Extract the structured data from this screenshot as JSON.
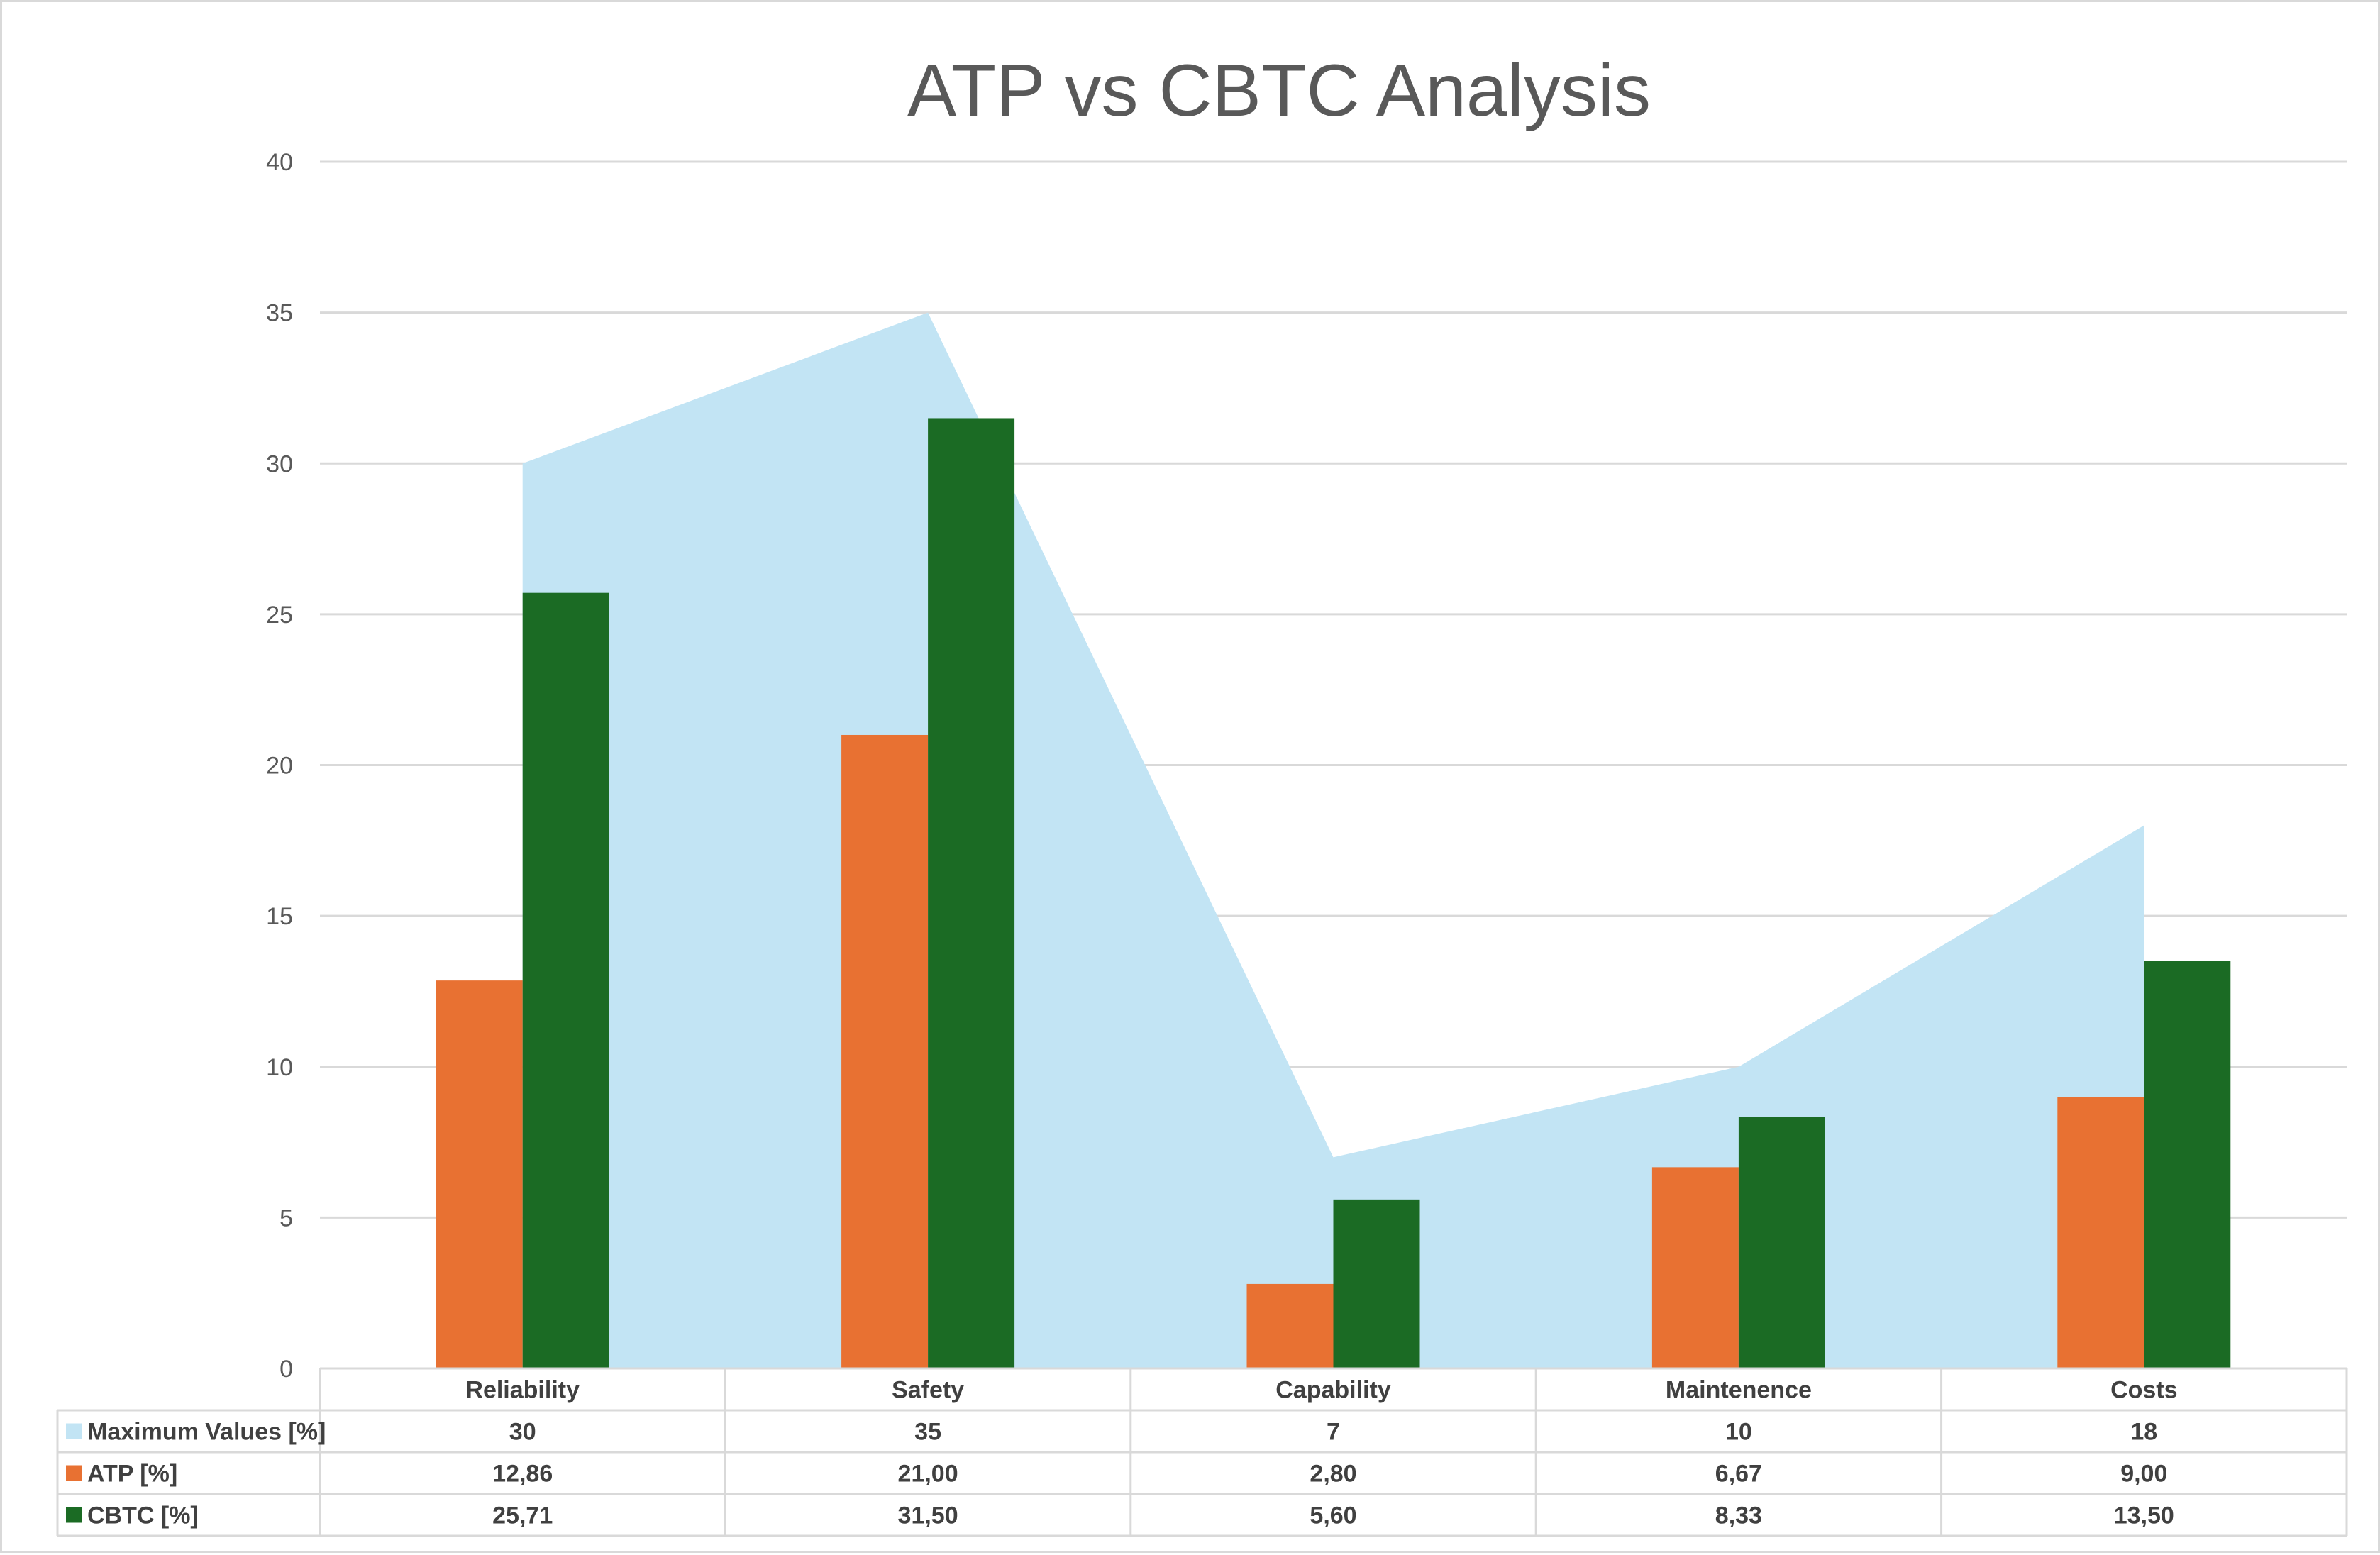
{
  "chart_data": {
    "type": "bar",
    "title": "ATP vs CBTC Analysis",
    "xlabel": "",
    "ylabel": "",
    "ylim": [
      0,
      40
    ],
    "yticks": [
      0,
      5,
      10,
      15,
      20,
      25,
      30,
      35,
      40
    ],
    "grid": true,
    "legend": "data-table",
    "categories": [
      "Reliability",
      "Safety",
      "Capability",
      "Maintenence",
      "Costs"
    ],
    "series": [
      {
        "name": "Maximum Values [%]",
        "type": "area",
        "color": "#c2e4f4",
        "values": [
          30,
          35,
          7,
          10,
          18
        ],
        "labels": [
          "30",
          "35",
          "7",
          "10",
          "18"
        ]
      },
      {
        "name": "ATP [%]",
        "type": "bar",
        "color": "#e87132",
        "values": [
          12.86,
          21.0,
          2.8,
          6.67,
          9.0
        ],
        "labels": [
          "12,86",
          "21,00",
          "2,80",
          "6,67",
          "9,00"
        ]
      },
      {
        "name": "CBTC [%]",
        "type": "bar",
        "color": "#1b6b24",
        "values": [
          25.71,
          31.5,
          5.6,
          8.33,
          13.5
        ],
        "labels": [
          "25,71",
          "31,50",
          "5,60",
          "8,33",
          "13,50"
        ]
      }
    ]
  }
}
